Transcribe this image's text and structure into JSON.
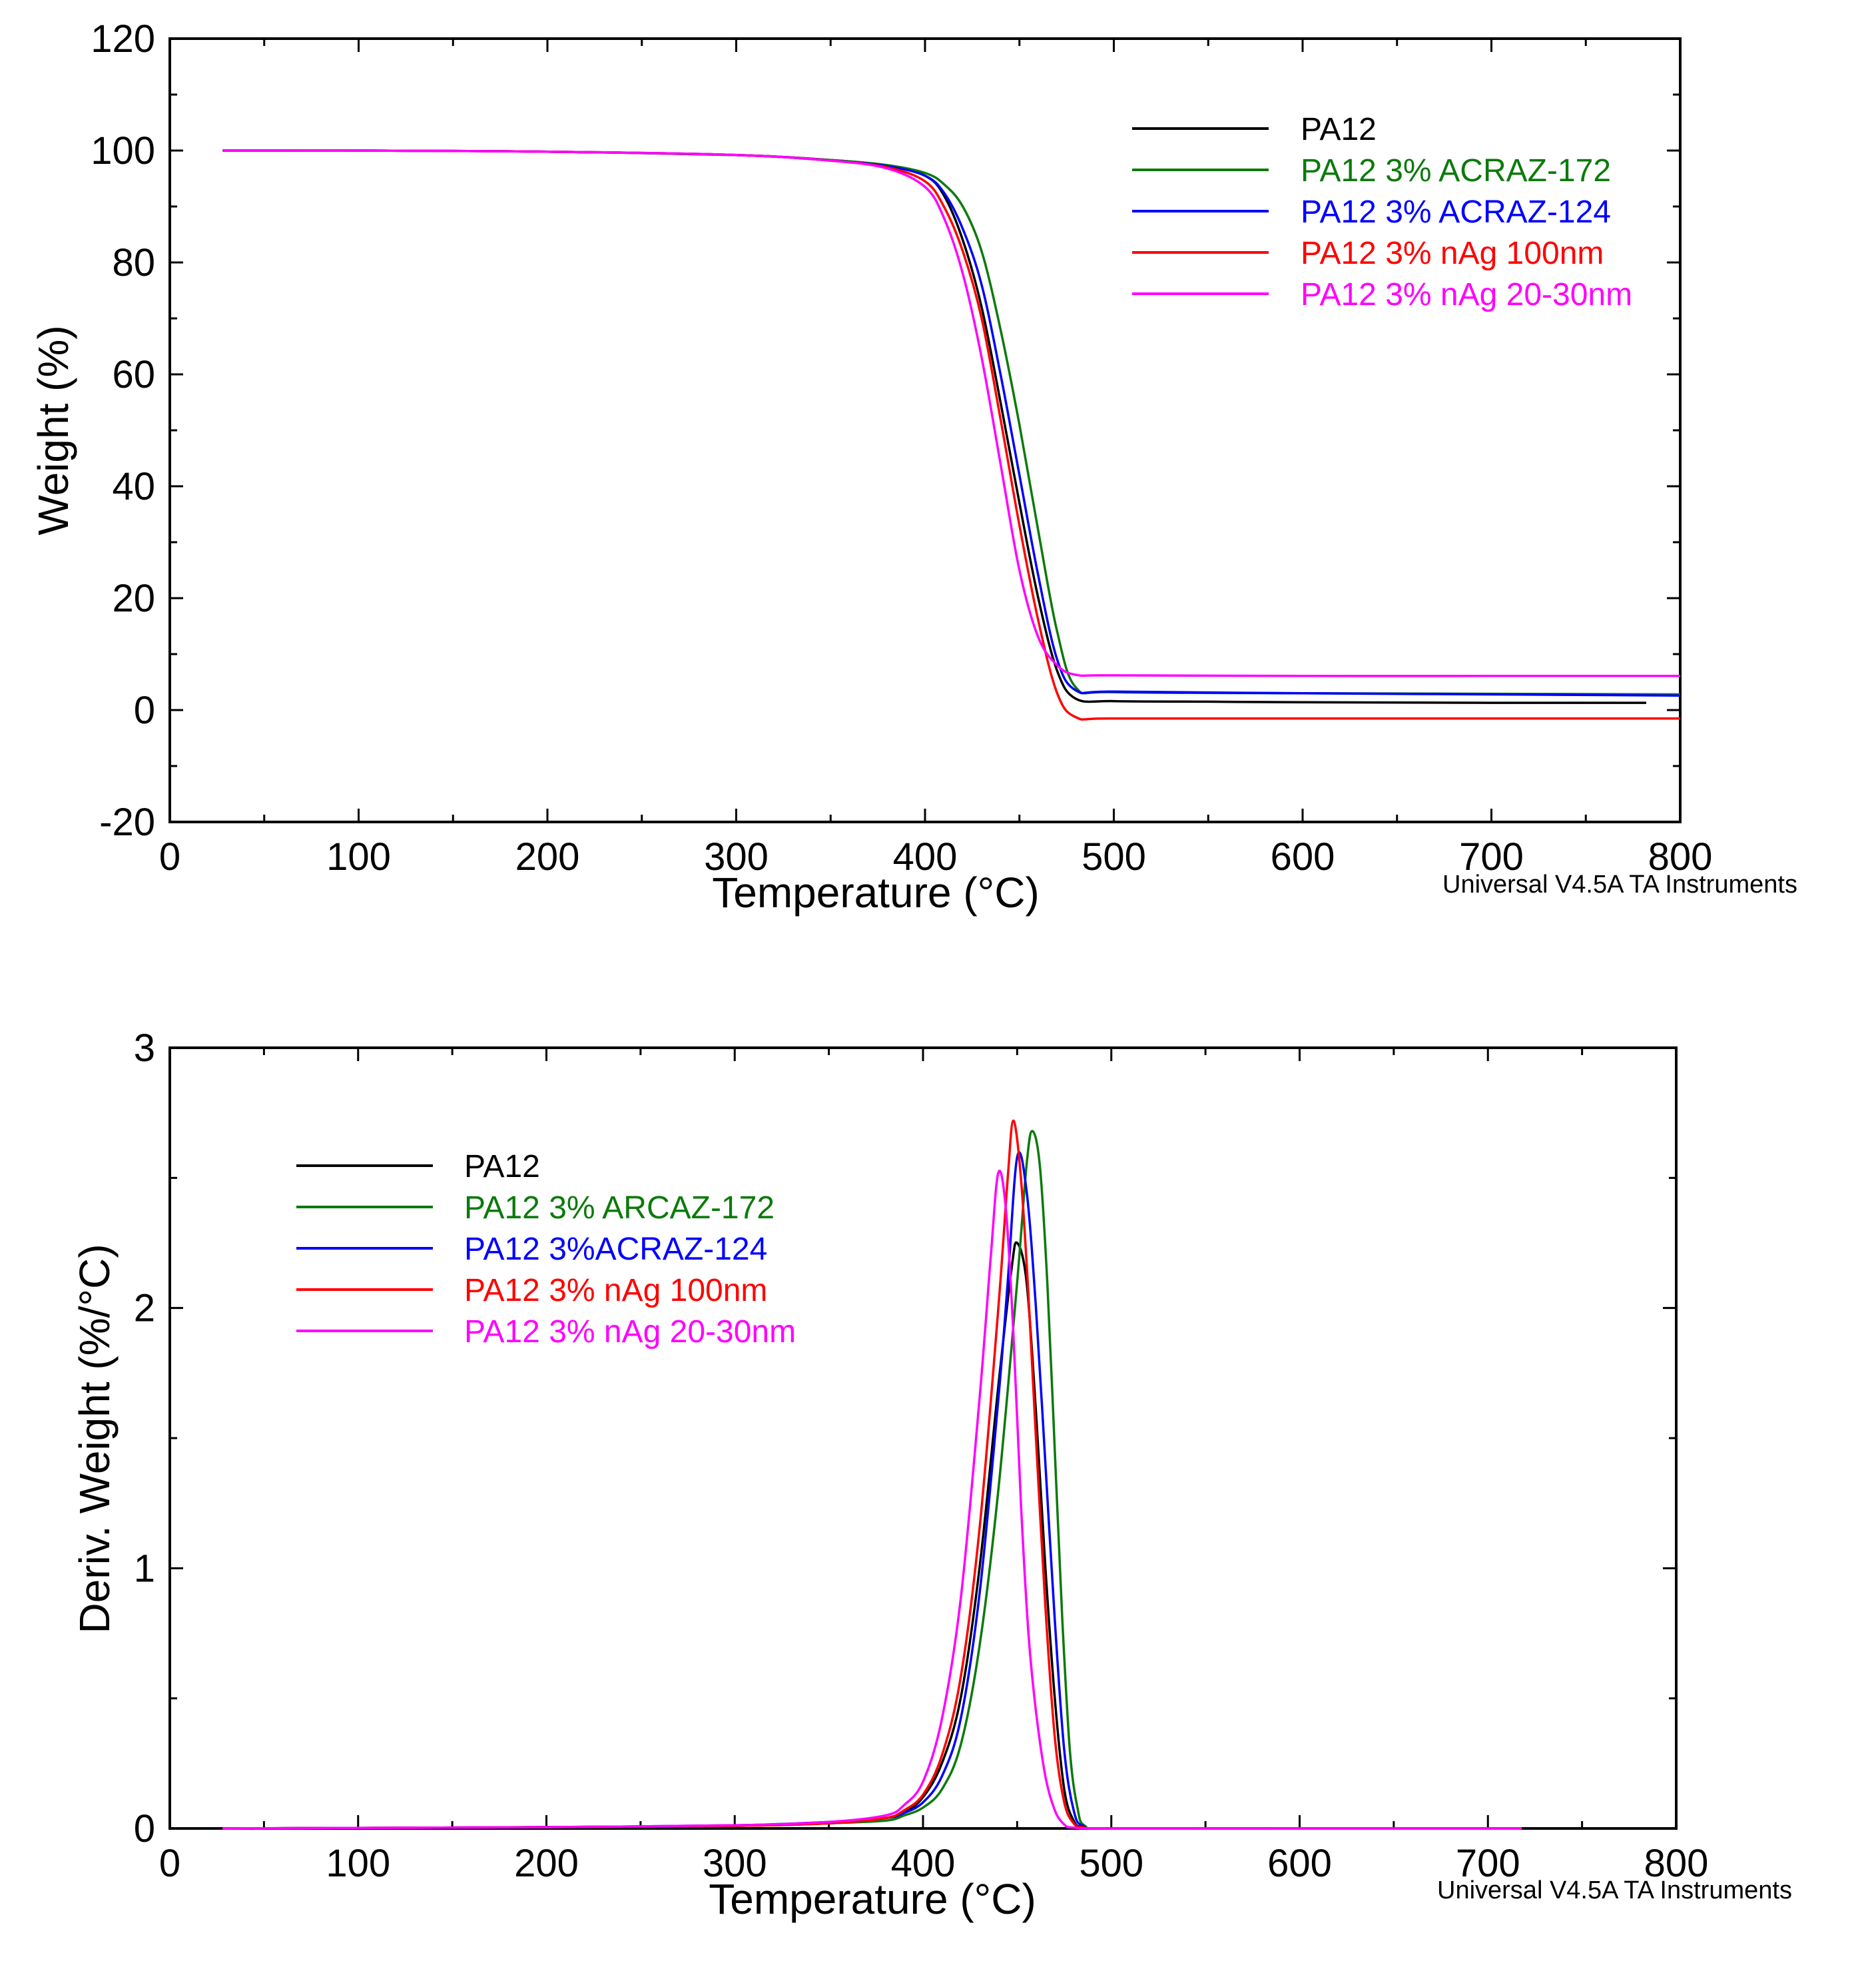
{
  "colors": {
    "PA12": "#000000",
    "ACRAZ172": "#0b7a0b",
    "ACRAZ124": "#0000ff",
    "nAg100": "#ff0000",
    "nAg2030": "#ff00ff"
  },
  "chart_data": [
    {
      "type": "line",
      "title": "",
      "xlabel": "Temperature (°C)",
      "ylabel": "Weight (%)",
      "xlim": [
        0,
        800
      ],
      "ylim": [
        -20,
        120
      ],
      "xticks": [
        0,
        100,
        200,
        300,
        400,
        500,
        600,
        700,
        800
      ],
      "yticks": [
        -20,
        0,
        20,
        40,
        60,
        80,
        100,
        120
      ],
      "xtick_labels": [
        "0",
        "100",
        "200",
        "300",
        "400",
        "500",
        "600",
        "700",
        "800"
      ],
      "ytick_labels": [
        "-20",
        "0",
        "20",
        "40",
        "60",
        "80",
        "100",
        "120"
      ],
      "legend_position": "top-right",
      "footer": "Universal V4.5A TA Instruments",
      "series": [
        {
          "name": "PA12",
          "color_key": "PA12",
          "x": [
            28,
            100,
            200,
            300,
            350,
            380,
            400,
            410,
            420,
            430,
            440,
            450,
            460,
            470,
            480,
            500,
            550,
            600,
            700,
            782
          ],
          "y": [
            100,
            100,
            99.8,
            99.2,
            98.3,
            97.3,
            95.5,
            92,
            84,
            72,
            55,
            37,
            20,
            7,
            2,
            1.6,
            1.5,
            1.4,
            1.3,
            1.3
          ]
        },
        {
          "name": "PA12 3% ACRAZ-172",
          "color_key": "ACRAZ172",
          "x": [
            28,
            100,
            200,
            300,
            350,
            380,
            400,
            410,
            420,
            430,
            440,
            450,
            460,
            470,
            480,
            500,
            600,
            700,
            800
          ],
          "y": [
            100,
            100,
            99.8,
            99.2,
            98.3,
            97.4,
            96,
            94,
            90,
            82,
            68,
            51,
            32,
            14,
            4,
            3.2,
            3,
            2.9,
            2.8
          ]
        },
        {
          "name": "PA12 3% ACRAZ-124",
          "color_key": "ACRAZ124",
          "x": [
            28,
            100,
            200,
            300,
            350,
            380,
            400,
            410,
            420,
            430,
            440,
            450,
            460,
            470,
            480,
            500,
            600,
            700,
            800
          ],
          "y": [
            100,
            100,
            99.8,
            99.2,
            98.2,
            97.2,
            95.5,
            92.5,
            86,
            76,
            60,
            42,
            24,
            9,
            3.5,
            3.3,
            3,
            2.8,
            2.6
          ]
        },
        {
          "name": "PA12 3% nAg 100nm",
          "color_key": "nAg100",
          "x": [
            28,
            100,
            200,
            300,
            350,
            380,
            400,
            410,
            420,
            430,
            440,
            450,
            460,
            470,
            480,
            500,
            600,
            700,
            800
          ],
          "y": [
            100,
            100,
            99.8,
            99.2,
            98.2,
            97,
            94.5,
            90,
            82,
            70,
            52,
            33,
            16,
            3,
            -1.3,
            -1.5,
            -1.5,
            -1.5,
            -1.5
          ]
        },
        {
          "name": "PA12 3% nAg 20-30nm",
          "color_key": "nAg2030",
          "x": [
            28,
            100,
            200,
            300,
            350,
            380,
            400,
            410,
            420,
            430,
            440,
            450,
            460,
            470,
            480,
            500,
            600,
            700,
            800
          ],
          "y": [
            100,
            100,
            99.8,
            99.2,
            98.2,
            96.8,
            93.5,
            88,
            78,
            63,
            44,
            25,
            13,
            8,
            6.3,
            6.2,
            6.1,
            6.1,
            6.1
          ]
        }
      ]
    },
    {
      "type": "line",
      "title": "",
      "xlabel": "Temperature (°C)",
      "ylabel": "Deriv. Weight (%/°C)",
      "xlim": [
        0,
        800
      ],
      "ylim": [
        0,
        3
      ],
      "xticks": [
        0,
        100,
        200,
        300,
        400,
        500,
        600,
        700,
        800
      ],
      "yticks": [
        0,
        1,
        2,
        3
      ],
      "xtick_labels": [
        "0",
        "100",
        "200",
        "300",
        "400",
        "500",
        "600",
        "700",
        "800"
      ],
      "ytick_labels": [
        "0",
        "1",
        "2",
        "3"
      ],
      "legend_position": "top-left",
      "footer": "Universal V4.5A TA Instruments",
      "series": [
        {
          "name": "PA12",
          "color_key": "PA12",
          "x": [
            28,
            100,
            200,
            300,
            350,
            380,
            390,
            400,
            410,
            420,
            430,
            440,
            447,
            450,
            455,
            460,
            465,
            470,
            475,
            480,
            485,
            500,
            600,
            718
          ],
          "y": [
            0,
            0.002,
            0.005,
            0.01,
            0.02,
            0.04,
            0.06,
            0.12,
            0.25,
            0.5,
            1.0,
            1.7,
            2.15,
            2.25,
            2.1,
            1.6,
            1.0,
            0.5,
            0.15,
            0.03,
            0.005,
            0,
            0,
            0
          ]
        },
        {
          "name": "PA12 3% ARCAZ-172",
          "color_key": "ACRAZ172",
          "x": [
            28,
            100,
            200,
            300,
            350,
            380,
            390,
            400,
            410,
            420,
            430,
            440,
            450,
            455,
            458,
            462,
            466,
            470,
            474,
            478,
            482,
            486,
            500,
            600,
            718
          ],
          "y": [
            0,
            0.002,
            0.005,
            0.01,
            0.02,
            0.03,
            0.05,
            0.08,
            0.15,
            0.32,
            0.7,
            1.3,
            2.1,
            2.55,
            2.68,
            2.55,
            2.1,
            1.45,
            0.8,
            0.3,
            0.08,
            0.01,
            0,
            0,
            0
          ]
        },
        {
          "name": "PA12 3%ACRAZ-124",
          "color_key": "ACRAZ124",
          "x": [
            28,
            100,
            200,
            300,
            350,
            380,
            390,
            400,
            410,
            420,
            430,
            440,
            445,
            450,
            455,
            460,
            465,
            470,
            475,
            480,
            485,
            500,
            600,
            718
          ],
          "y": [
            0,
            0.002,
            0.005,
            0.012,
            0.025,
            0.04,
            0.06,
            0.1,
            0.2,
            0.42,
            0.9,
            1.65,
            2.1,
            2.58,
            2.45,
            2.0,
            1.4,
            0.8,
            0.3,
            0.07,
            0.01,
            0,
            0,
            0
          ]
        },
        {
          "name": "PA12 3% nAg 100nm",
          "color_key": "nAg100",
          "x": [
            28,
            100,
            200,
            300,
            350,
            380,
            390,
            400,
            410,
            420,
            430,
            440,
            445,
            448,
            452,
            456,
            460,
            465,
            470,
            475,
            480,
            485,
            500,
            600,
            718
          ],
          "y": [
            0,
            0.002,
            0.005,
            0.01,
            0.02,
            0.04,
            0.07,
            0.13,
            0.28,
            0.58,
            1.15,
            2.0,
            2.5,
            2.72,
            2.5,
            2.05,
            1.5,
            0.85,
            0.35,
            0.1,
            0.02,
            0.004,
            0,
            0,
            0
          ]
        },
        {
          "name": "PA12 3% nAg 20-30nm",
          "color_key": "nAg2030",
          "x": [
            28,
            100,
            200,
            300,
            350,
            380,
            390,
            400,
            410,
            420,
            430,
            436,
            440,
            444,
            448,
            452,
            456,
            460,
            465,
            470,
            475,
            480,
            500,
            600,
            718
          ],
          "y": [
            0,
            0.002,
            0.005,
            0.012,
            0.025,
            0.05,
            0.09,
            0.18,
            0.42,
            0.88,
            1.65,
            2.2,
            2.52,
            2.38,
            1.9,
            1.25,
            0.75,
            0.45,
            0.2,
            0.07,
            0.015,
            0.003,
            0,
            0,
            0
          ]
        }
      ]
    }
  ]
}
